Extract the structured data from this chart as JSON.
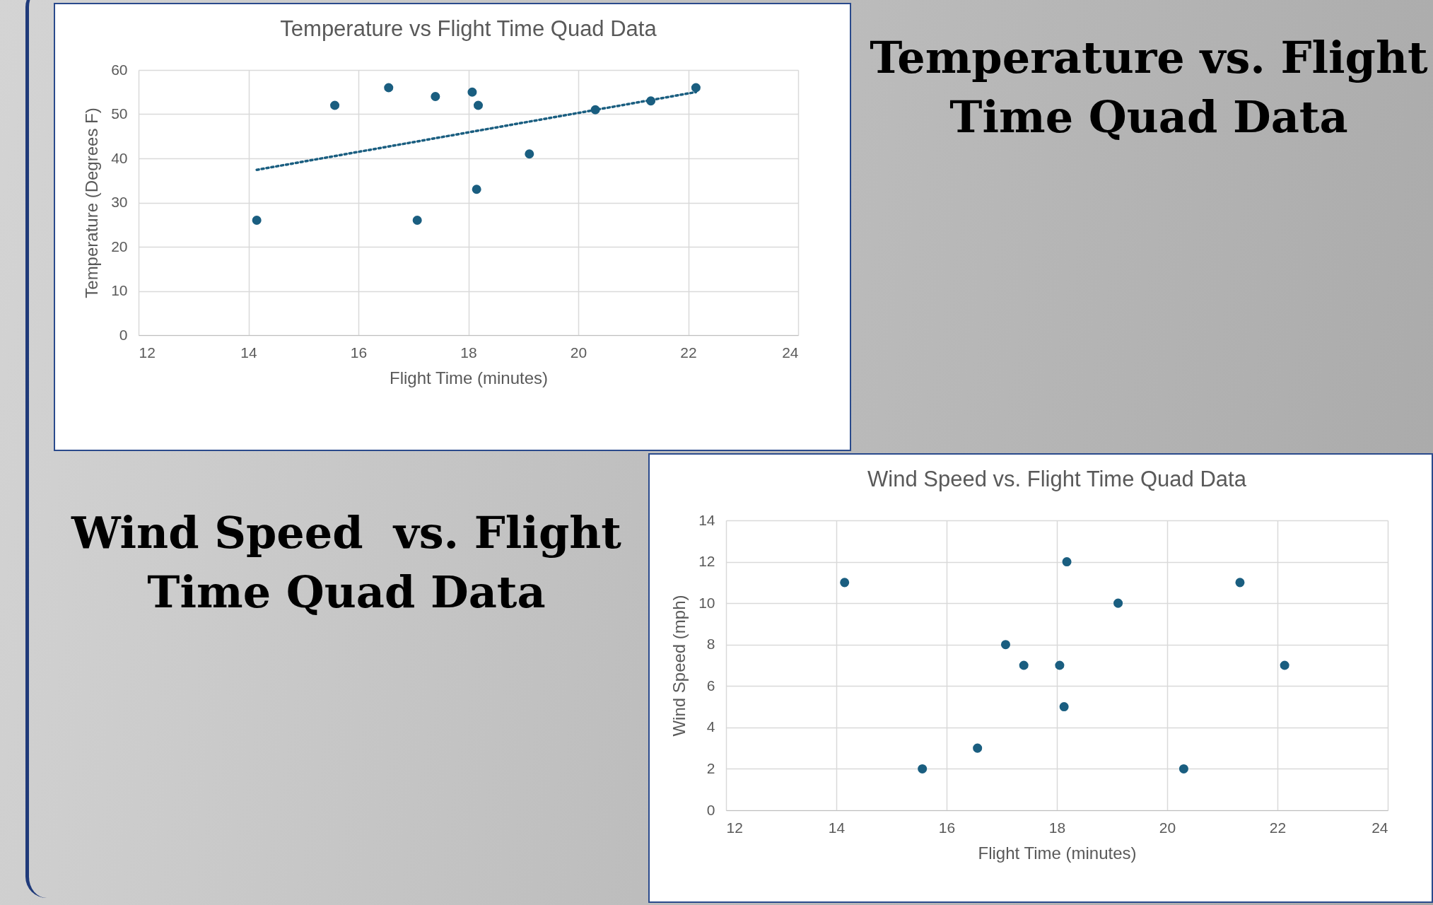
{
  "chart_data": [
    {
      "type": "scatter",
      "title": "Temperature vs Flight Time Quad Data",
      "xlabel": "Flight Time (minutes)",
      "ylabel": "Temperature (Degrees F)",
      "x": [
        14.15,
        15.57,
        16.55,
        17.07,
        17.4,
        18.07,
        18.18,
        18.15,
        19.11,
        20.31,
        21.32,
        22.14
      ],
      "series": [
        {
          "color": "#1a5e80",
          "marker": "circle",
          "values": [
            26,
            52,
            56,
            26,
            54,
            55,
            52,
            33,
            41,
            51,
            53,
            56
          ]
        },
        {
          "type": "line",
          "color": "#1a5e80",
          "marker": "none",
          "line_style": "dotted",
          "x": [
            14.15,
            22.14
          ],
          "values": [
            37.4,
            55
          ]
        }
      ],
      "xlim": [
        12,
        24
      ],
      "xticks": [
        12,
        14,
        16,
        18,
        20,
        22,
        24
      ],
      "ylim": [
        0,
        60
      ],
      "yticks": [
        0,
        10,
        20,
        30,
        40,
        50,
        60
      ],
      "grid": true,
      "annotations": [
        "Temperature vs. Flight Time Quad Data"
      ]
    },
    {
      "type": "scatter",
      "title": "Wind Speed vs. Flight Time Quad Data",
      "xlabel": "Flight Time (minutes)",
      "ylabel": "Wind Speed (mph)",
      "x": [
        14.15,
        15.56,
        16.56,
        17.07,
        17.4,
        18.05,
        18.13,
        18.18,
        19.11,
        20.3,
        21.32,
        22.13
      ],
      "series": [
        {
          "color": "#1a5e80",
          "marker": "circle",
          "values": [
            11,
            2,
            3,
            8,
            7,
            7,
            5,
            12,
            10,
            2,
            11,
            7
          ]
        }
      ],
      "xlim": [
        12,
        24
      ],
      "xticks": [
        12,
        14,
        16,
        18,
        20,
        22,
        24
      ],
      "ylim": [
        0,
        14
      ],
      "yticks": [
        0,
        2,
        4,
        6,
        8,
        10,
        12,
        14
      ],
      "grid": true,
      "annotations": [
        "Wind Speed  vs. Flight Time Quad Data"
      ]
    }
  ]
}
